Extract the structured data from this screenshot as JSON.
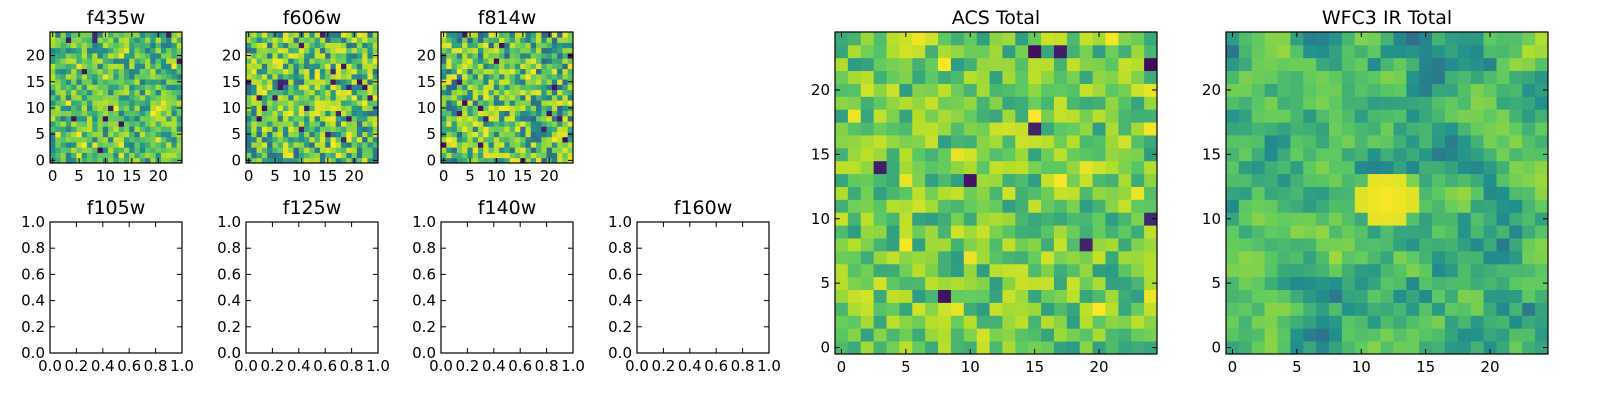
{
  "figure": {
    "colormap": "viridis",
    "palette": [
      "#440154",
      "#3b528b",
      "#21918c",
      "#5ec962",
      "#b5de2b",
      "#fde725"
    ]
  },
  "chart_data": [
    {
      "id": "f435w",
      "type": "heatmap",
      "title": "f435w",
      "grid_size": 25,
      "xlim": [
        -0.5,
        24.5
      ],
      "ylim": [
        -0.5,
        24.5
      ],
      "xticks": [
        0,
        5,
        10,
        15,
        20
      ],
      "yticks": [
        0,
        5,
        10,
        15,
        20
      ],
      "xtick_labels": [
        "0",
        "5",
        "10",
        "15",
        "20"
      ],
      "ytick_labels": [
        "0",
        "5",
        "10",
        "15",
        "20"
      ],
      "value_range": [
        0,
        1
      ],
      "smooth": 0,
      "seed": 11,
      "bias": 0.58,
      "spread": 0.16,
      "extreme_rate": 0.02
    },
    {
      "id": "f606w",
      "type": "heatmap",
      "title": "f606w",
      "grid_size": 25,
      "xlim": [
        -0.5,
        24.5
      ],
      "ylim": [
        -0.5,
        24.5
      ],
      "xticks": [
        0,
        5,
        10,
        15,
        20
      ],
      "yticks": [
        0,
        5,
        10,
        15,
        20
      ],
      "xtick_labels": [
        "0",
        "5",
        "10",
        "15",
        "20"
      ],
      "ytick_labels": [
        "0",
        "5",
        "10",
        "15",
        "20"
      ],
      "value_range": [
        0,
        1
      ],
      "smooth": 0,
      "seed": 23,
      "bias": 0.62,
      "spread": 0.22,
      "extreme_rate": 0.025
    },
    {
      "id": "f814w",
      "type": "heatmap",
      "title": "f814w",
      "grid_size": 25,
      "xlim": [
        -0.5,
        24.5
      ],
      "ylim": [
        -0.5,
        24.5
      ],
      "xticks": [
        0,
        5,
        10,
        15,
        20
      ],
      "yticks": [
        0,
        5,
        10,
        15,
        20
      ],
      "xtick_labels": [
        "0",
        "5",
        "10",
        "15",
        "20"
      ],
      "ytick_labels": [
        "0",
        "5",
        "10",
        "15",
        "20"
      ],
      "value_range": [
        0,
        1
      ],
      "smooth": 0,
      "seed": 37,
      "bias": 0.6,
      "spread": 0.22,
      "extreme_rate": 0.025
    },
    {
      "id": "f105w",
      "type": "empty",
      "title": "f105w",
      "xlim": [
        0,
        1
      ],
      "ylim": [
        0,
        1
      ],
      "xticks": [
        0,
        0.2,
        0.4,
        0.6,
        0.8,
        1.0
      ],
      "yticks": [
        0,
        0.2,
        0.4,
        0.6,
        0.8,
        1.0
      ],
      "xtick_labels": [
        "0.0",
        "0.2",
        "0.4",
        "0.6",
        "0.8",
        "1.0"
      ],
      "ytick_labels": [
        "0.0",
        "0.2",
        "0.4",
        "0.6",
        "0.8",
        "1.0"
      ]
    },
    {
      "id": "f125w",
      "type": "empty",
      "title": "f125w",
      "xlim": [
        0,
        1
      ],
      "ylim": [
        0,
        1
      ],
      "xticks": [
        0,
        0.2,
        0.4,
        0.6,
        0.8,
        1.0
      ],
      "yticks": [
        0,
        0.2,
        0.4,
        0.6,
        0.8,
        1.0
      ],
      "xtick_labels": [
        "0.0",
        "0.2",
        "0.4",
        "0.6",
        "0.8",
        "1.0"
      ],
      "ytick_labels": [
        "0.0",
        "0.2",
        "0.4",
        "0.6",
        "0.8",
        "1.0"
      ]
    },
    {
      "id": "f140w",
      "type": "empty",
      "title": "f140w",
      "xlim": [
        0,
        1
      ],
      "ylim": [
        0,
        1
      ],
      "xticks": [
        0,
        0.2,
        0.4,
        0.6,
        0.8,
        1.0
      ],
      "yticks": [
        0,
        0.2,
        0.4,
        0.6,
        0.8,
        1.0
      ],
      "xtick_labels": [
        "0.0",
        "0.2",
        "0.4",
        "0.6",
        "0.8",
        "1.0"
      ],
      "ytick_labels": [
        "0.0",
        "0.2",
        "0.4",
        "0.6",
        "0.8",
        "1.0"
      ]
    },
    {
      "id": "f160w",
      "type": "empty",
      "title": "f160w",
      "xlim": [
        0,
        1
      ],
      "ylim": [
        0,
        1
      ],
      "xticks": [
        0,
        0.2,
        0.4,
        0.6,
        0.8,
        1.0
      ],
      "yticks": [
        0,
        0.2,
        0.4,
        0.6,
        0.8,
        1.0
      ],
      "xtick_labels": [
        "0.0",
        "0.2",
        "0.4",
        "0.6",
        "0.8",
        "1.0"
      ],
      "ytick_labels": [
        "0.0",
        "0.2",
        "0.4",
        "0.6",
        "0.8",
        "1.0"
      ]
    },
    {
      "id": "acs-total",
      "type": "heatmap",
      "title": "ACS Total",
      "grid_size": 25,
      "xlim": [
        -0.5,
        24.5
      ],
      "ylim": [
        -0.5,
        24.5
      ],
      "xticks": [
        0,
        5,
        10,
        15,
        20
      ],
      "yticks": [
        0,
        5,
        10,
        15,
        20
      ],
      "xtick_labels": [
        "0",
        "5",
        "10",
        "15",
        "20"
      ],
      "ytick_labels": [
        "0",
        "5",
        "10",
        "15",
        "20"
      ],
      "value_range": [
        0,
        1
      ],
      "smooth": 0,
      "seed": 53,
      "bias": 0.66,
      "spread": 0.14,
      "extreme_rate": 0.03
    },
    {
      "id": "wfc3-ir-total",
      "type": "heatmap",
      "title": "WFC3 IR Total",
      "grid_size": 25,
      "xlim": [
        -0.5,
        24.5
      ],
      "ylim": [
        -0.5,
        24.5
      ],
      "xticks": [
        0,
        5,
        10,
        15,
        20
      ],
      "yticks": [
        0,
        5,
        10,
        15,
        20
      ],
      "xtick_labels": [
        "0",
        "5",
        "10",
        "15",
        "20"
      ],
      "ytick_labels": [
        "0",
        "5",
        "10",
        "15",
        "20"
      ],
      "value_range": [
        0,
        1
      ],
      "smooth": 1,
      "seed": 71,
      "bias": 0.52,
      "spread": 0.2,
      "extreme_rate": 0.02,
      "hotspot": {
        "x": 12,
        "y": 11.5,
        "radius": 2.2,
        "value": 1.0
      }
    }
  ]
}
